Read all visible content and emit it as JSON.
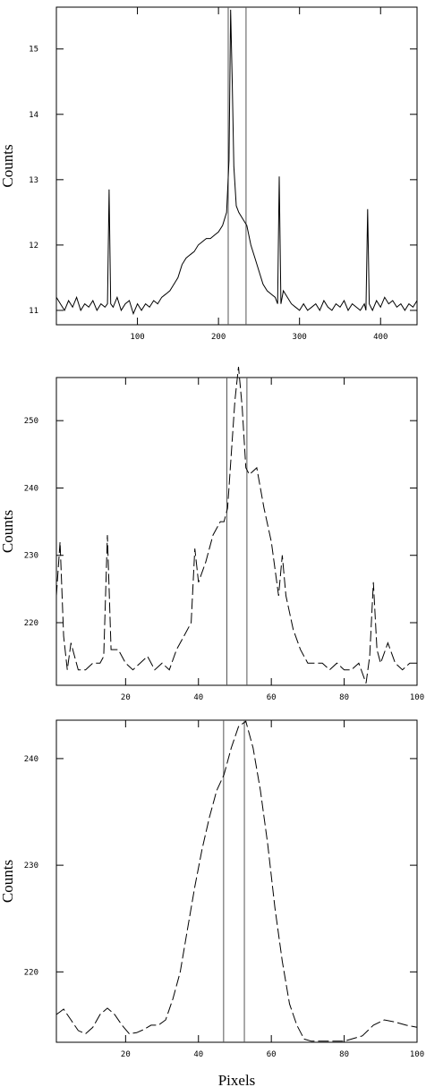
{
  "chart_data": [
    {
      "type": "line",
      "ylabel": "Counts",
      "color": "#000000",
      "dashed": false,
      "xlim": [
        0,
        445
      ],
      "ylim": [
        10.78,
        15.64
      ],
      "xticks": [
        100,
        200,
        300,
        400
      ],
      "yticks": [
        11,
        12,
        13,
        14,
        15
      ],
      "vlines": [
        212,
        234
      ],
      "x": [
        0,
        5,
        10,
        15,
        20,
        25,
        30,
        35,
        40,
        45,
        50,
        55,
        60,
        63,
        65,
        67,
        70,
        75,
        80,
        85,
        90,
        95,
        100,
        105,
        110,
        115,
        120,
        125,
        130,
        135,
        140,
        145,
        150,
        155,
        160,
        165,
        170,
        175,
        180,
        185,
        190,
        195,
        200,
        205,
        210,
        213,
        215,
        217,
        219,
        222,
        225,
        230,
        235,
        240,
        245,
        250,
        255,
        260,
        265,
        270,
        273,
        275,
        277,
        280,
        285,
        290,
        295,
        300,
        305,
        310,
        315,
        320,
        325,
        330,
        335,
        340,
        345,
        350,
        355,
        360,
        365,
        370,
        375,
        380,
        382,
        384,
        386,
        390,
        395,
        400,
        405,
        410,
        415,
        420,
        425,
        430,
        435,
        440,
        445
      ],
      "values": [
        11.2,
        11.1,
        11.0,
        11.15,
        11.05,
        11.2,
        11.0,
        11.1,
        11.05,
        11.15,
        11.0,
        11.1,
        11.05,
        11.1,
        12.85,
        11.1,
        11.05,
        11.2,
        11.0,
        11.1,
        11.15,
        10.95,
        11.1,
        11.0,
        11.1,
        11.05,
        11.15,
        11.1,
        11.2,
        11.25,
        11.3,
        11.4,
        11.5,
        11.7,
        11.8,
        11.85,
        11.9,
        12.0,
        12.05,
        12.1,
        12.1,
        12.15,
        12.2,
        12.3,
        12.5,
        13.3,
        15.6,
        14.5,
        13.2,
        12.6,
        12.5,
        12.4,
        12.3,
        12.0,
        11.8,
        11.6,
        11.4,
        11.3,
        11.25,
        11.2,
        11.1,
        13.05,
        11.1,
        11.3,
        11.2,
        11.1,
        11.05,
        11.0,
        11.1,
        11.0,
        11.05,
        11.1,
        11.0,
        11.15,
        11.05,
        11.0,
        11.1,
        11.05,
        11.15,
        11.0,
        11.1,
        11.05,
        11.0,
        11.1,
        11.0,
        12.55,
        11.1,
        11.0,
        11.15,
        11.05,
        11.2,
        11.1,
        11.15,
        11.05,
        11.1,
        11.0,
        11.1,
        11.05,
        11.15
      ]
    },
    {
      "type": "line",
      "ylabel": "Counts",
      "color": "#000000",
      "dashed": true,
      "xlim": [
        1,
        100
      ],
      "ylim": [
        210.7,
        256.4
      ],
      "xticks": [
        20,
        40,
        60,
        80,
        100
      ],
      "yticks": [
        220,
        230,
        240,
        250
      ],
      "vlines": [
        47.8,
        53.3
      ],
      "x": [
        1,
        2,
        3,
        4,
        5,
        7,
        9,
        11,
        13,
        14,
        15,
        16,
        18,
        20,
        22,
        24,
        26,
        28,
        30,
        32,
        34,
        36,
        38,
        39,
        40,
        42,
        44,
        46,
        47,
        48,
        49,
        50,
        51,
        52,
        53,
        54,
        56,
        58,
        60,
        62,
        63,
        64,
        66,
        68,
        70,
        72,
        74,
        76,
        78,
        80,
        82,
        84,
        86,
        87,
        88,
        89,
        90,
        92,
        94,
        96,
        98,
        100
      ],
      "values": [
        224,
        232,
        218,
        213,
        217,
        213,
        213,
        214,
        214,
        215,
        233,
        216,
        216,
        214,
        213,
        214,
        215,
        213,
        214,
        213,
        216,
        218,
        220,
        231,
        226,
        229,
        233,
        235,
        235,
        237,
        245,
        253,
        258,
        252,
        243,
        242,
        243,
        237,
        232,
        224,
        230,
        224,
        219,
        216,
        214,
        214,
        214,
        213,
        214,
        213,
        213,
        214,
        211,
        215,
        226,
        216,
        214,
        217,
        214,
        213,
        214,
        214
      ]
    },
    {
      "type": "line",
      "xlabel": "Pixels",
      "ylabel": "Counts",
      "color": "#000000",
      "dashed": true,
      "xlim": [
        1,
        100
      ],
      "ylim": [
        213.4,
        243.6
      ],
      "xticks": [
        20,
        40,
        60,
        80,
        100
      ],
      "yticks": [
        220,
        230,
        240
      ],
      "vlines": [
        46.9,
        52.6
      ],
      "x": [
        1,
        3,
        5,
        7,
        9,
        11,
        13,
        15,
        17,
        19,
        21,
        23,
        25,
        27,
        29,
        31,
        33,
        35,
        37,
        39,
        41,
        43,
        45,
        47,
        49,
        51,
        53,
        55,
        57,
        59,
        61,
        63,
        65,
        67,
        69,
        71,
        75,
        80,
        85,
        88,
        91,
        94,
        97,
        100
      ],
      "values": [
        216,
        216.5,
        215.5,
        214.5,
        214.2,
        214.8,
        216,
        216.6,
        216,
        215,
        214.2,
        214.3,
        214.6,
        215,
        215,
        215.5,
        217.5,
        220,
        224,
        228,
        231.5,
        234.5,
        237,
        238.5,
        241,
        243,
        243.5,
        241,
        237,
        232,
        226,
        221,
        217,
        215,
        213.7,
        213.5,
        213.5,
        213.5,
        214,
        215,
        215.5,
        215.3,
        215,
        214.8
      ]
    }
  ]
}
